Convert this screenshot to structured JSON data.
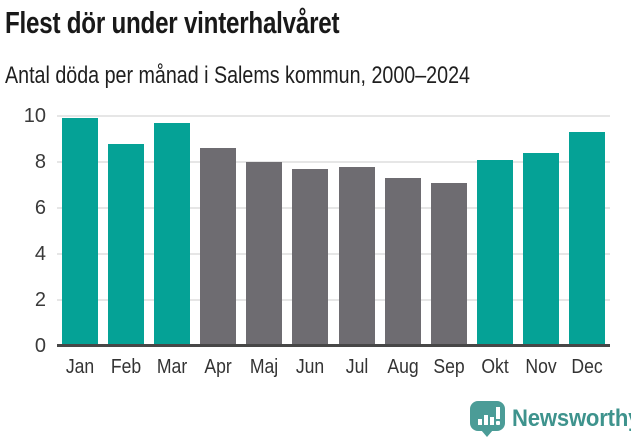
{
  "title": "Flest dör under vinterhalvåret",
  "subtitle": "Antal döda per månad i Salems kommun, 2000–2024",
  "chart_data": {
    "type": "bar",
    "categories": [
      "Jan",
      "Feb",
      "Mar",
      "Apr",
      "Maj",
      "Jun",
      "Jul",
      "Aug",
      "Sep",
      "Okt",
      "Nov",
      "Dec"
    ],
    "values": [
      9.9,
      8.8,
      9.7,
      8.6,
      8.0,
      7.7,
      7.8,
      7.3,
      7.1,
      8.1,
      8.4,
      9.3
    ],
    "highlighted": [
      true,
      true,
      true,
      false,
      false,
      false,
      false,
      false,
      false,
      true,
      true,
      true
    ],
    "title": "Flest dör under vinterhalvåret",
    "subtitle": "Antal döda per månad i Salems kommun, 2000–2024",
    "xlabel": "",
    "ylabel": "",
    "ylim": [
      0,
      10
    ],
    "yticks": [
      0,
      2,
      4,
      6,
      8,
      10
    ],
    "grid": true,
    "legend": "none",
    "colors": {
      "highlight": "#05a296",
      "base": "#6e6c71",
      "gridline": "#e6e6e6",
      "axis_line": "#474747",
      "tick_label": "#3a3a3a"
    }
  },
  "footer": {
    "brand": "Newsworthy",
    "logo_icon": "bar-chart-speech-bubble-icon",
    "icon_color": "#4b9c97",
    "text_color": "#3e938d"
  }
}
